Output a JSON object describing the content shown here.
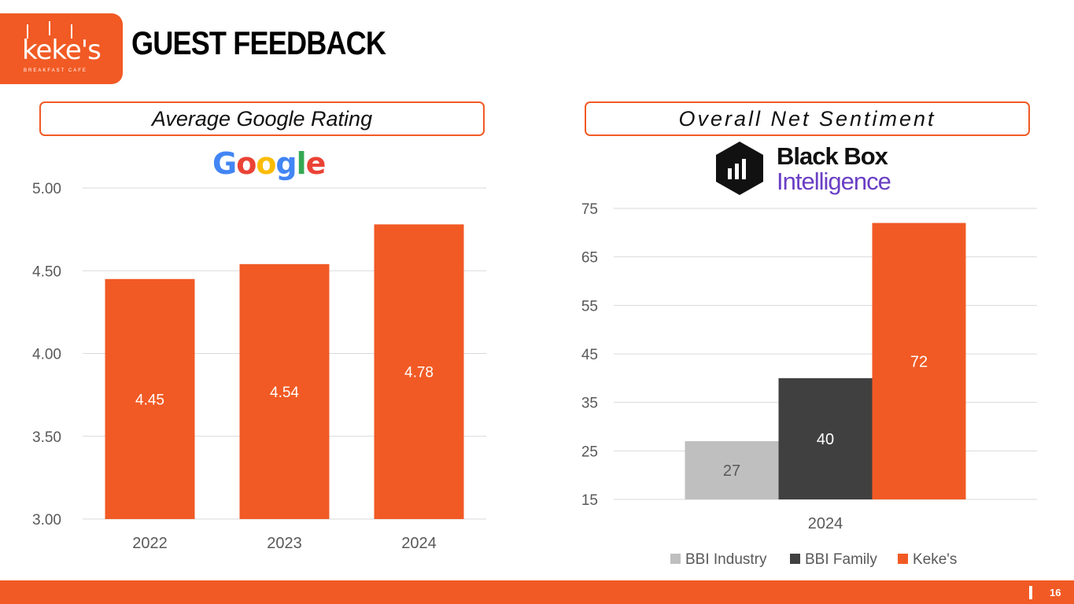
{
  "logo": {
    "word": "keke's",
    "sub": "BREAKFAST CAFE"
  },
  "page_title": "GUEST FEEDBACK",
  "page_number": "16",
  "left_panel": {
    "title": "Average Google Rating",
    "brand": "Google"
  },
  "right_panel": {
    "title": "Overall Net Sentiment",
    "brand_line1": "Black Box",
    "brand_line2": "Intelligence"
  },
  "colors": {
    "accent": "#f15a24",
    "industry": "#bfbfbf",
    "family": "#404040",
    "gridline": "#d9d9d9",
    "axis_text": "#595959"
  },
  "chart_data": [
    {
      "type": "bar",
      "title": "Average Google Rating",
      "categories": [
        "2022",
        "2023",
        "2024"
      ],
      "values": [
        4.45,
        4.54,
        4.78
      ],
      "value_labels": [
        "4.45",
        "4.54",
        "4.78"
      ],
      "ylim": [
        3.0,
        5.0
      ],
      "yticks": [
        3.0,
        3.5,
        4.0,
        4.5,
        5.0
      ],
      "ytick_labels": [
        "3.00",
        "3.50",
        "4.00",
        "4.50",
        "5.00"
      ],
      "grid": true,
      "legend": "none"
    },
    {
      "type": "bar",
      "title": "Overall Net Sentiment",
      "categories": [
        "2024"
      ],
      "series": [
        {
          "name": "BBI Industry",
          "values": [
            27
          ],
          "color": "#bfbfbf"
        },
        {
          "name": "BBI Family",
          "values": [
            40
          ],
          "color": "#404040"
        },
        {
          "name": "Keke's",
          "values": [
            72
          ],
          "color": "#f15a24"
        }
      ],
      "ylim": [
        15,
        75
      ],
      "yticks": [
        15,
        25,
        35,
        45,
        55,
        65,
        75
      ],
      "grid": true,
      "legend": "bottom"
    }
  ]
}
